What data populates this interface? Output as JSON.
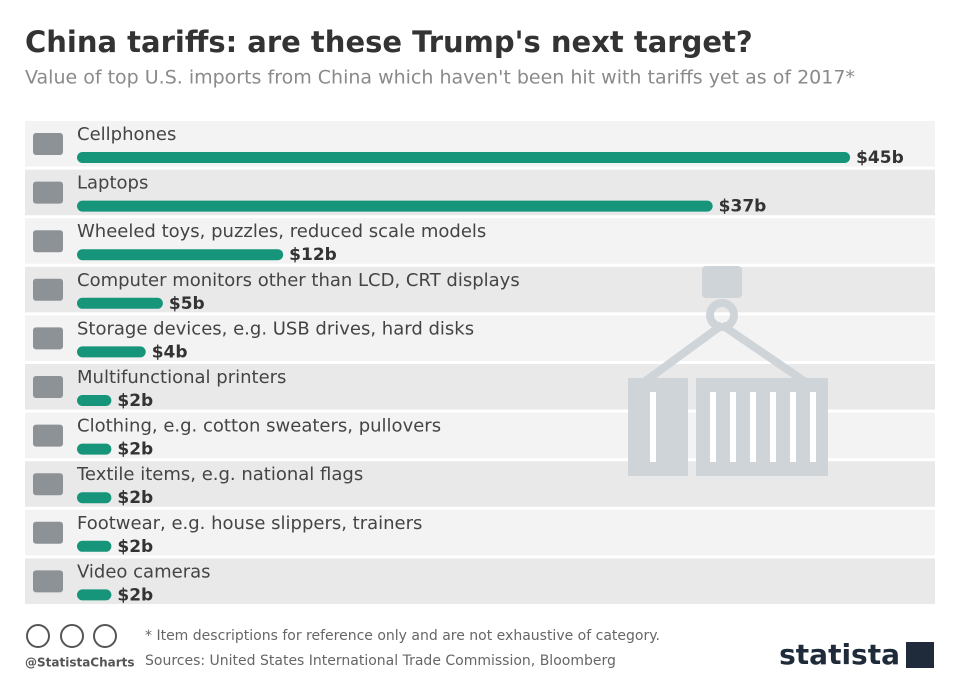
{
  "chart_data": {
    "type": "bar",
    "orientation": "horizontal",
    "title": "China tariffs: are these Trump's next target?",
    "subtitle": "Value of top U.S. imports from China which haven't been hit with tariffs yet as of 2017*",
    "categories": [
      "Cellphones",
      "Laptops",
      "Wheeled toys, puzzles, reduced scale models",
      "Computer monitors other than LCD, CRT displays",
      "Storage devices, e.g. USB drives, hard disks",
      "Multifunctional printers",
      "Clothing, e.g. cotton sweaters, pullovers",
      "Textile items, e.g. national flags",
      "Footwear, e.g. house slippers, trainers",
      "Video cameras"
    ],
    "values": [
      45,
      37,
      12,
      5,
      4,
      2,
      2,
      2,
      2,
      2
    ],
    "value_labels": [
      "$45b",
      "$37b",
      "$12b",
      "$5b",
      "$4b",
      "$2b",
      "$2b",
      "$2b",
      "$2b",
      "$2b"
    ],
    "color": "#16957a",
    "footnote": "* Item descriptions for reference only and are not exhaustive of category.",
    "source": "Sources: United States International Trade Commission, Bloomberg",
    "handle": "@StatistaCharts",
    "brand": "statista"
  }
}
